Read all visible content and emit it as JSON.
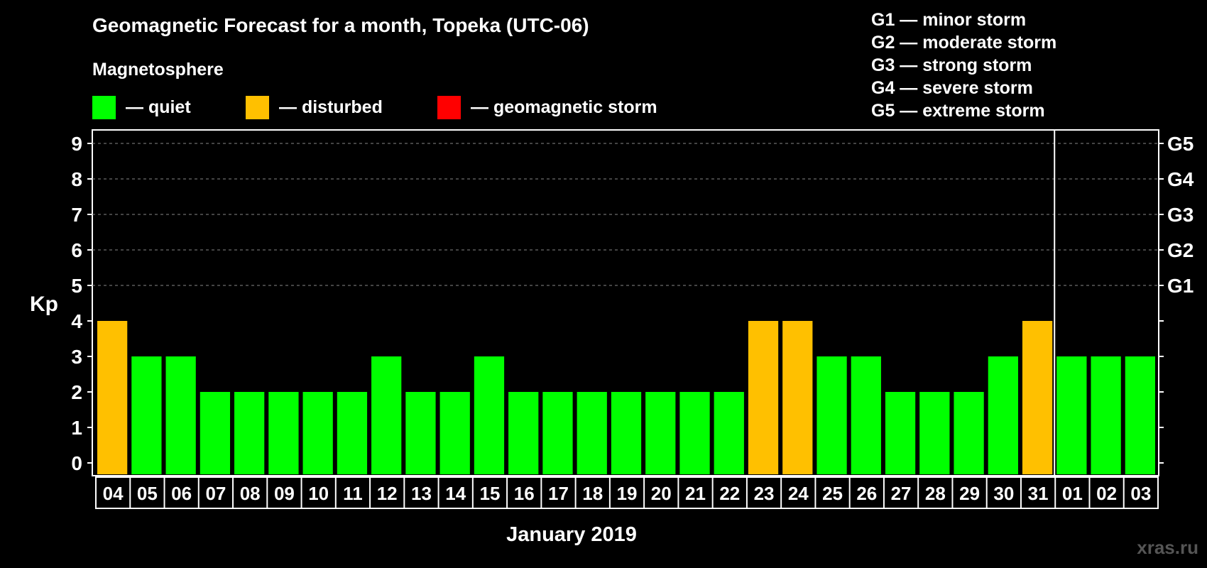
{
  "title": "Geomagnetic Forecast for a month, Topeka (UTC-06)",
  "subtitle": "Magnetosphere",
  "legend": [
    {
      "label": "— quiet",
      "color": "#00ff00"
    },
    {
      "label": "— disturbed",
      "color": "#ffc000"
    },
    {
      "label": "— geomagnetic storm",
      "color": "#ff0000"
    }
  ],
  "storm_levels": [
    "G1 — minor storm",
    "G2 — moderate storm",
    "G3 — strong storm",
    "G4 — severe storm",
    "G5 — extreme storm"
  ],
  "watermark": "xras.ru",
  "chart_data": {
    "type": "bar",
    "title": "Geomagnetic Forecast for a month, Topeka (UTC-06)",
    "xlabel": "January 2019",
    "ylabel": "Kp",
    "ylim": [
      0,
      9
    ],
    "yticks": [
      0,
      1,
      2,
      3,
      4,
      5,
      6,
      7,
      8,
      9
    ],
    "right_axis_labels": [
      {
        "kp": 5,
        "label": "G1"
      },
      {
        "kp": 6,
        "label": "G2"
      },
      {
        "kp": 7,
        "label": "G3"
      },
      {
        "kp": 8,
        "label": "G4"
      },
      {
        "kp": 9,
        "label": "G5"
      }
    ],
    "grid": "dashed horizontal at Kp 5-9",
    "month_divider_after": "31",
    "categories": [
      "04",
      "05",
      "06",
      "07",
      "08",
      "09",
      "10",
      "11",
      "12",
      "13",
      "14",
      "15",
      "16",
      "17",
      "18",
      "19",
      "20",
      "21",
      "22",
      "23",
      "24",
      "25",
      "26",
      "27",
      "28",
      "29",
      "30",
      "31",
      "01",
      "02",
      "03"
    ],
    "values": [
      4,
      3,
      3,
      2,
      2,
      2,
      2,
      2,
      3,
      2,
      2,
      3,
      2,
      2,
      2,
      2,
      2,
      2,
      2,
      4,
      4,
      3,
      3,
      2,
      2,
      2,
      3,
      4,
      3,
      3,
      3
    ],
    "colors": {
      "quiet": "#00ff00",
      "disturbed": "#ffc000",
      "storm": "#ff0000"
    }
  }
}
